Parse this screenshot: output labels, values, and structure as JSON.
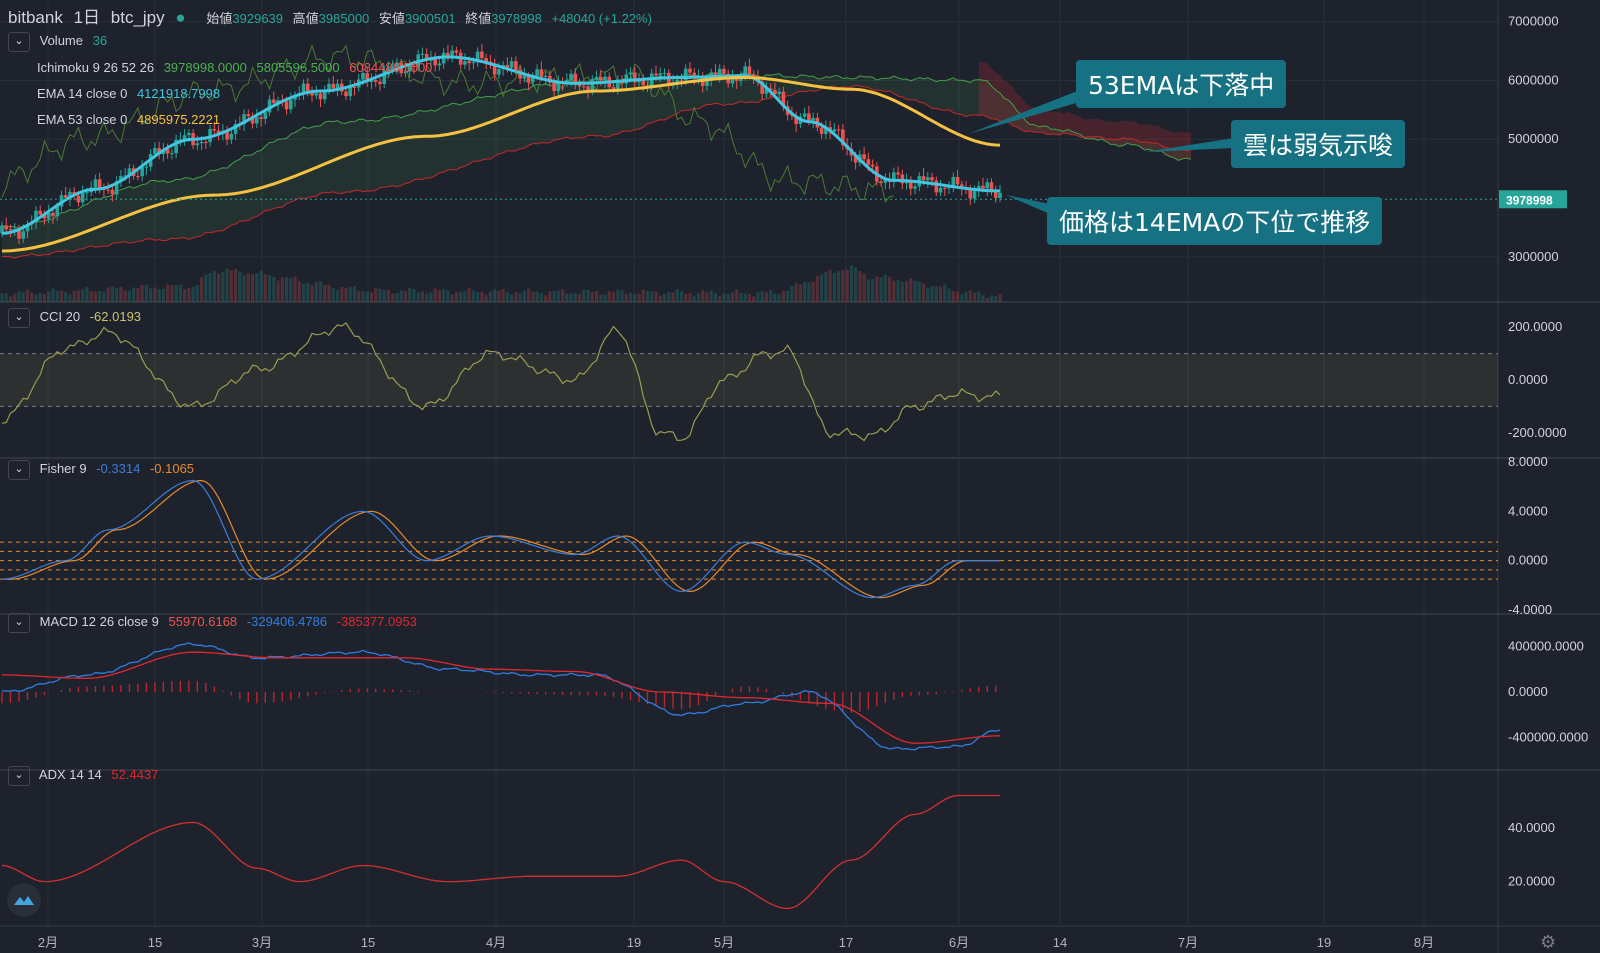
{
  "header": {
    "exchange": "bitbank",
    "interval": "1日",
    "symbol": "btc_jpy",
    "open_label": "始値",
    "open": "3929639",
    "high_label": "高値",
    "high": "3985000",
    "low_label": "安値",
    "low": "3900501",
    "close_label": "終値",
    "close": "3978998",
    "change": "+48040 (+1.22%)"
  },
  "legends": {
    "volume": {
      "label": "Volume",
      "value": "36"
    },
    "ichimoku": {
      "label": "Ichimoku 9 26 52 26",
      "v1": "3978998.0000",
      "v2": "5805596.5000",
      "v3": "6084486.5000"
    },
    "ema14": {
      "label": "EMA 14 close 0",
      "value": "4121918.7998"
    },
    "ema53": {
      "label": "EMA 53 close 0",
      "value": "4895975.2221"
    },
    "cci": {
      "label": "CCI 20",
      "value": "-62.0193"
    },
    "fisher": {
      "label": "Fisher 9",
      "v1": "-0.3314",
      "v2": "-0.1065"
    },
    "macd": {
      "label": "MACD 12 26 close 9",
      "v1": "55970.6168",
      "v2": "-329406.4786",
      "v3": "-385377.0953"
    },
    "adx": {
      "label": "ADX 14 14",
      "value": "52.4437"
    }
  },
  "callouts": {
    "ema53": "53EMAは下落中",
    "cloud": "雲は弱気示唆",
    "price": "価格は14EMAの下位で推移"
  },
  "colors": {
    "bg": "#1e222d",
    "grid": "#2a2e39",
    "up": "#26a69a",
    "down": "#ef5350",
    "ema14": "#41c6e0",
    "ema53": "#f5c142",
    "cci": "#9c9b4f",
    "fisher1": "#3d7dd8",
    "fisher2": "#e58a2d",
    "macd": "#2f7de1",
    "signal": "#e0282e",
    "adx": "#d32f2f"
  },
  "chart_data": [
    {
      "type": "candlestick",
      "title": "btc_jpy 1日",
      "x_ticks": [
        "2月",
        "15",
        "3月",
        "15",
        "4月",
        "19",
        "5月",
        "17",
        "6月",
        "14",
        "7月",
        "19",
        "8月"
      ],
      "y_ticks": [
        7000000,
        6000000,
        5000000,
        3000000
      ],
      "ylim": [
        2300000,
        7300000
      ],
      "last_price": 3978998,
      "price_tag": "3978998",
      "series": [
        {
          "name": "EMA 14",
          "anchors": [
            [
              0,
              3400000
            ],
            [
              22,
              4150000
            ],
            [
              45,
              5000000
            ],
            [
              75,
              5820000
            ],
            [
              105,
              6400000
            ],
            [
              135,
              5950000
            ],
            [
              160,
              6050000
            ],
            [
              175,
              6080000
            ],
            [
              190,
              5300000
            ],
            [
              210,
              4300000
            ],
            [
              235,
              4120000
            ]
          ]
        },
        {
          "name": "EMA 53",
          "anchors": [
            [
              0,
              3100000
            ],
            [
              50,
              4050000
            ],
            [
              100,
              5050000
            ],
            [
              140,
              5820000
            ],
            [
              175,
              6050000
            ],
            [
              200,
              5850000
            ],
            [
              235,
              4900000
            ]
          ]
        }
      ],
      "cloud": {
        "anchors_a": [
          [
            0,
            3500000
          ],
          [
            40,
            4300000
          ],
          [
            80,
            5300000
          ],
          [
            140,
            6000000
          ],
          [
            170,
            6100000
          ],
          [
            200,
            6050000
          ],
          [
            230,
            6000000
          ],
          [
            245,
            5200000
          ],
          [
            265,
            4900000
          ],
          [
            280,
            4650000
          ]
        ],
        "anchors_b": [
          [
            0,
            3000000
          ],
          [
            40,
            3300000
          ],
          [
            80,
            4100000
          ],
          [
            140,
            5050000
          ],
          [
            170,
            5600000
          ],
          [
            200,
            5900000
          ],
          [
            230,
            5400000
          ],
          [
            245,
            5100000
          ],
          [
            265,
            5000000
          ],
          [
            280,
            4800000
          ]
        ]
      },
      "volume_anchors": [
        [
          0,
          20
        ],
        [
          45,
          35
        ],
        [
          50,
          70
        ],
        [
          90,
          25
        ],
        [
          140,
          22
        ],
        [
          180,
          20
        ],
        [
          200,
          75
        ],
        [
          205,
          55
        ],
        [
          235,
          15
        ]
      ]
    },
    {
      "type": "line",
      "name": "CCI 20",
      "y_ticks": [
        200,
        0,
        -200
      ],
      "ylim": [
        -280,
        280
      ],
      "bands": [
        100,
        -100
      ],
      "anchors": [
        [
          0,
          -150
        ],
        [
          15,
          120
        ],
        [
          25,
          180
        ],
        [
          45,
          -100
        ],
        [
          60,
          40
        ],
        [
          80,
          200
        ],
        [
          100,
          -100
        ],
        [
          115,
          100
        ],
        [
          135,
          0
        ],
        [
          145,
          190
        ],
        [
          155,
          -200
        ],
        [
          160,
          -220
        ],
        [
          170,
          0
        ],
        [
          180,
          100
        ],
        [
          185,
          110
        ],
        [
          195,
          -200
        ],
        [
          205,
          -210
        ],
        [
          215,
          -100
        ],
        [
          225,
          -50
        ],
        [
          230,
          -62
        ],
        [
          235,
          -62
        ]
      ]
    },
    {
      "type": "line",
      "name": "Fisher 9",
      "y_ticks": [
        8,
        4,
        0,
        -4
      ],
      "ylim": [
        -4,
        8
      ],
      "levels": [
        1.5,
        0.75,
        0,
        -0.75,
        -1.5
      ],
      "anchors": [
        [
          0,
          -1.5
        ],
        [
          15,
          0
        ],
        [
          25,
          2.5
        ],
        [
          45,
          6.5
        ],
        [
          60,
          -1.5
        ],
        [
          85,
          4
        ],
        [
          100,
          0
        ],
        [
          115,
          2
        ],
        [
          135,
          0.5
        ],
        [
          145,
          2
        ],
        [
          160,
          -2.5
        ],
        [
          175,
          1.5
        ],
        [
          185,
          0.5
        ],
        [
          205,
          -3
        ],
        [
          215,
          -2
        ],
        [
          225,
          0
        ],
        [
          235,
          0
        ]
      ]
    },
    {
      "type": "line",
      "name": "MACD 12 26 close 9",
      "y_ticks": [
        400000,
        0,
        -400000
      ],
      "ylim": [
        -650000,
        650000
      ],
      "macd_anchors": [
        [
          0,
          0
        ],
        [
          20,
          150000
        ],
        [
          45,
          420000
        ],
        [
          60,
          300000
        ],
        [
          85,
          350000
        ],
        [
          105,
          200000
        ],
        [
          125,
          150000
        ],
        [
          140,
          150000
        ],
        [
          160,
          -200000
        ],
        [
          175,
          -100000
        ],
        [
          190,
          0
        ],
        [
          210,
          -500000
        ],
        [
          225,
          -480000
        ],
        [
          235,
          -330000
        ]
      ],
      "signal_anchors": [
        [
          0,
          150000
        ],
        [
          20,
          120000
        ],
        [
          45,
          350000
        ],
        [
          65,
          300000
        ],
        [
          95,
          300000
        ],
        [
          115,
          200000
        ],
        [
          135,
          180000
        ],
        [
          155,
          0
        ],
        [
          175,
          -50000
        ],
        [
          195,
          -100000
        ],
        [
          215,
          -450000
        ],
        [
          235,
          -385000
        ]
      ],
      "hist_anchors": [
        [
          0,
          -100000
        ],
        [
          20,
          50000
        ],
        [
          45,
          100000
        ],
        [
          60,
          -100000
        ],
        [
          85,
          30000
        ],
        [
          105,
          0
        ],
        [
          140,
          -30000
        ],
        [
          160,
          -150000
        ],
        [
          175,
          50000
        ],
        [
          200,
          -180000
        ],
        [
          215,
          -30000
        ],
        [
          235,
          56000
        ]
      ]
    },
    {
      "type": "line",
      "name": "ADX 14 14",
      "y_ticks": [
        40,
        20
      ],
      "ylim": [
        5,
        60
      ],
      "anchors": [
        [
          0,
          26
        ],
        [
          10,
          20
        ],
        [
          45,
          42
        ],
        [
          60,
          25
        ],
        [
          70,
          20
        ],
        [
          85,
          26
        ],
        [
          105,
          20
        ],
        [
          125,
          22
        ],
        [
          145,
          22
        ],
        [
          160,
          28
        ],
        [
          170,
          20
        ],
        [
          185,
          10
        ],
        [
          200,
          28
        ],
        [
          215,
          45
        ],
        [
          225,
          52
        ],
        [
          235,
          52
        ]
      ]
    }
  ]
}
